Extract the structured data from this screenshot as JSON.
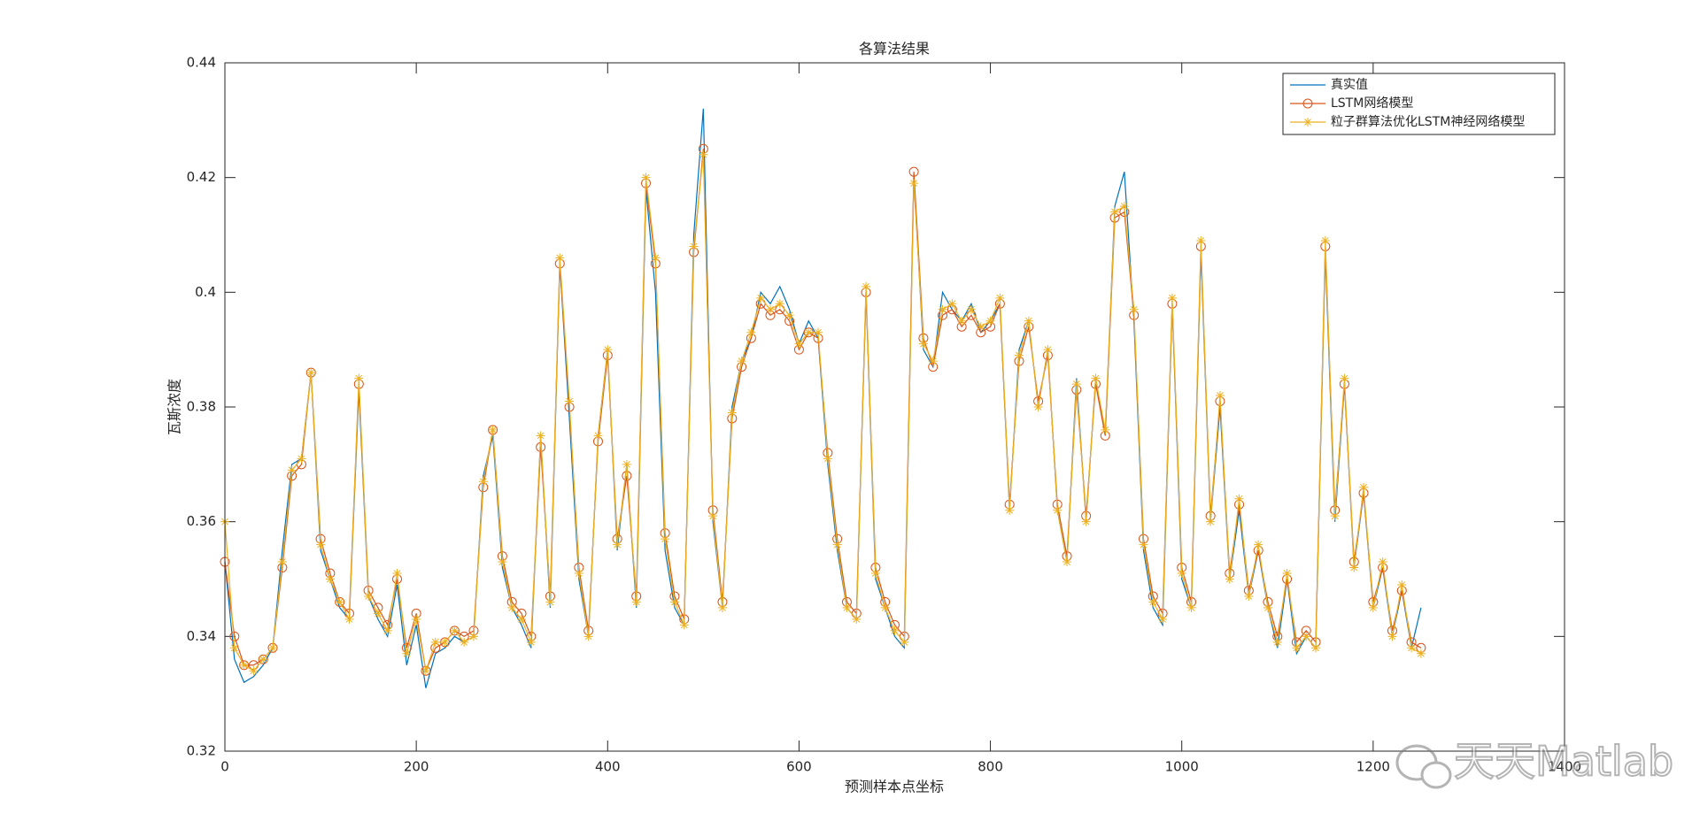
{
  "chart_data": {
    "type": "line",
    "title": "各算法结果",
    "x_label": "预测样本点坐标",
    "y_label": "瓦斯浓度",
    "watermark": "天天Matlab",
    "xlim": [
      0,
      1400
    ],
    "xticks": [
      0,
      200,
      400,
      600,
      800,
      1000,
      1200,
      1400
    ],
    "ylim": [
      0.32,
      0.44
    ],
    "yticks": [
      0.32,
      0.34,
      0.36,
      0.38,
      0.4,
      0.42,
      0.44
    ],
    "legend": "upper right",
    "x": [
      0,
      10,
      20,
      30,
      40,
      50,
      60,
      70,
      80,
      90,
      100,
      110,
      120,
      130,
      140,
      150,
      160,
      170,
      180,
      190,
      200,
      210,
      220,
      230,
      240,
      250,
      260,
      270,
      280,
      290,
      300,
      310,
      320,
      330,
      340,
      350,
      360,
      370,
      380,
      390,
      400,
      410,
      420,
      430,
      440,
      450,
      460,
      470,
      480,
      490,
      500,
      510,
      520,
      530,
      540,
      550,
      560,
      570,
      580,
      590,
      600,
      610,
      620,
      630,
      640,
      650,
      660,
      670,
      680,
      690,
      700,
      710,
      720,
      730,
      740,
      750,
      760,
      770,
      780,
      790,
      800,
      810,
      820,
      830,
      840,
      850,
      860,
      870,
      880,
      890,
      900,
      910,
      920,
      930,
      940,
      950,
      960,
      970,
      980,
      990,
      1000,
      1010,
      1020,
      1030,
      1040,
      1050,
      1060,
      1070,
      1080,
      1090,
      1100,
      1110,
      1120,
      1130,
      1140,
      1150,
      1160,
      1170,
      1180,
      1190,
      1200,
      1210,
      1220,
      1230,
      1240,
      1250
    ],
    "series": [
      {
        "name": "真实值",
        "color": "#0072BD",
        "marker": "none",
        "values": [
          0.353,
          0.336,
          0.332,
          0.333,
          0.335,
          0.338,
          0.355,
          0.37,
          0.371,
          0.386,
          0.355,
          0.35,
          0.345,
          0.343,
          0.383,
          0.347,
          0.343,
          0.34,
          0.349,
          0.335,
          0.342,
          0.331,
          0.337,
          0.338,
          0.34,
          0.339,
          0.34,
          0.368,
          0.375,
          0.352,
          0.345,
          0.342,
          0.338,
          0.375,
          0.345,
          0.405,
          0.378,
          0.35,
          0.34,
          0.375,
          0.39,
          0.355,
          0.37,
          0.345,
          0.418,
          0.4,
          0.355,
          0.345,
          0.342,
          0.41,
          0.432,
          0.36,
          0.345,
          0.38,
          0.388,
          0.392,
          0.4,
          0.398,
          0.401,
          0.397,
          0.391,
          0.395,
          0.392,
          0.37,
          0.355,
          0.345,
          0.343,
          0.4,
          0.35,
          0.345,
          0.34,
          0.338,
          0.42,
          0.39,
          0.387,
          0.4,
          0.397,
          0.395,
          0.398,
          0.393,
          0.395,
          0.398,
          0.362,
          0.39,
          0.395,
          0.38,
          0.39,
          0.362,
          0.353,
          0.385,
          0.36,
          0.385,
          0.375,
          0.415,
          0.421,
          0.395,
          0.355,
          0.345,
          0.342,
          0.398,
          0.35,
          0.345,
          0.407,
          0.36,
          0.38,
          0.35,
          0.362,
          0.347,
          0.355,
          0.345,
          0.338,
          0.35,
          0.337,
          0.34,
          0.338,
          0.407,
          0.36,
          0.384,
          0.352,
          0.365,
          0.345,
          0.352,
          0.34,
          0.348,
          0.338,
          0.345
        ]
      },
      {
        "name": "LSTM网络模型",
        "color": "#D95319",
        "marker": "circle",
        "values": [
          0.353,
          0.34,
          0.335,
          0.335,
          0.336,
          0.338,
          0.352,
          0.368,
          0.37,
          0.386,
          0.357,
          0.351,
          0.346,
          0.344,
          0.384,
          0.348,
          0.345,
          0.342,
          0.35,
          0.338,
          0.344,
          0.334,
          0.338,
          0.339,
          0.341,
          0.34,
          0.341,
          0.366,
          0.376,
          0.354,
          0.346,
          0.344,
          0.34,
          0.373,
          0.347,
          0.405,
          0.38,
          0.352,
          0.341,
          0.374,
          0.389,
          0.357,
          0.368,
          0.347,
          0.419,
          0.405,
          0.358,
          0.347,
          0.343,
          0.407,
          0.425,
          0.362,
          0.346,
          0.378,
          0.387,
          0.392,
          0.398,
          0.396,
          0.397,
          0.395,
          0.39,
          0.393,
          0.392,
          0.372,
          0.357,
          0.346,
          0.344,
          0.4,
          0.352,
          0.346,
          0.342,
          0.34,
          0.421,
          0.392,
          0.387,
          0.396,
          0.397,
          0.394,
          0.396,
          0.393,
          0.394,
          0.398,
          0.363,
          0.388,
          0.394,
          0.381,
          0.389,
          0.363,
          0.354,
          0.383,
          0.361,
          0.384,
          0.375,
          0.413,
          0.414,
          0.396,
          0.357,
          0.347,
          0.344,
          0.398,
          0.352,
          0.346,
          0.408,
          0.361,
          0.381,
          0.351,
          0.363,
          0.348,
          0.355,
          0.346,
          0.34,
          0.35,
          0.339,
          0.341,
          0.339,
          0.408,
          0.362,
          0.384,
          0.353,
          0.365,
          0.346,
          0.352,
          0.341,
          0.348,
          0.339,
          0.338
        ]
      },
      {
        "name": "粒子群算法优化LSTM神经网络模型",
        "color": "#EDB120",
        "marker": "asterisk",
        "values": [
          0.36,
          0.338,
          0.335,
          0.334,
          0.336,
          0.338,
          0.353,
          0.369,
          0.371,
          0.386,
          0.356,
          0.35,
          0.346,
          0.343,
          0.385,
          0.347,
          0.344,
          0.341,
          0.351,
          0.337,
          0.343,
          0.334,
          0.339,
          0.339,
          0.341,
          0.339,
          0.34,
          0.367,
          0.376,
          0.353,
          0.345,
          0.343,
          0.339,
          0.375,
          0.346,
          0.406,
          0.381,
          0.351,
          0.34,
          0.375,
          0.39,
          0.356,
          0.37,
          0.346,
          0.42,
          0.406,
          0.357,
          0.346,
          0.342,
          0.408,
          0.424,
          0.361,
          0.345,
          0.379,
          0.388,
          0.393,
          0.399,
          0.397,
          0.398,
          0.396,
          0.391,
          0.393,
          0.393,
          0.371,
          0.356,
          0.345,
          0.343,
          0.401,
          0.351,
          0.345,
          0.341,
          0.339,
          0.419,
          0.391,
          0.388,
          0.397,
          0.398,
          0.395,
          0.397,
          0.394,
          0.395,
          0.399,
          0.362,
          0.389,
          0.395,
          0.38,
          0.39,
          0.362,
          0.353,
          0.384,
          0.36,
          0.385,
          0.376,
          0.414,
          0.415,
          0.397,
          0.356,
          0.346,
          0.343,
          0.399,
          0.351,
          0.345,
          0.409,
          0.36,
          0.382,
          0.35,
          0.364,
          0.347,
          0.356,
          0.345,
          0.339,
          0.351,
          0.338,
          0.34,
          0.338,
          0.409,
          0.361,
          0.385,
          0.352,
          0.366,
          0.345,
          0.353,
          0.34,
          0.349,
          0.338,
          0.337
        ]
      }
    ]
  }
}
